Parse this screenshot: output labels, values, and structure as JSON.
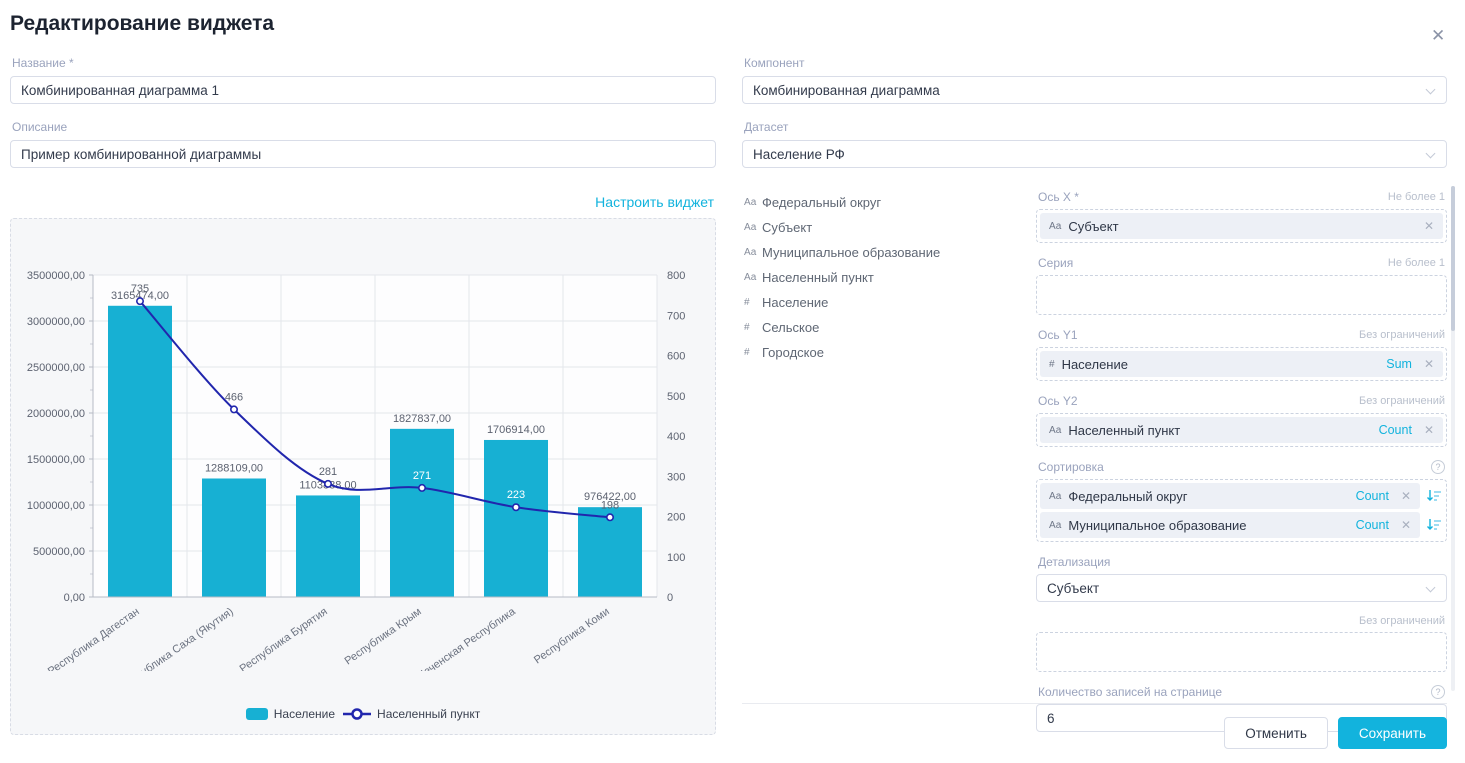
{
  "dialog": {
    "title": "Редактирование виджета",
    "close_icon": "✕"
  },
  "left": {
    "name_label": "Название *",
    "name_value": "Комбинированная диаграмма 1",
    "description_label": "Описание",
    "description_value": "Пример комбинированной диаграммы",
    "configure_link": "Настроить виджет"
  },
  "right": {
    "component_label": "Компонент",
    "component_value": "Комбинированная диаграмма",
    "dataset_label": "Датасет",
    "dataset_value": "Население РФ",
    "fields": [
      {
        "prefix": "Аа",
        "label": "Федеральный округ"
      },
      {
        "prefix": "Аа",
        "label": "Субъект"
      },
      {
        "prefix": "Аа",
        "label": "Муниципальное образование"
      },
      {
        "prefix": "Аа",
        "label": "Населенный пункт"
      },
      {
        "prefix": "#",
        "label": "Население"
      },
      {
        "prefix": "#",
        "label": "Сельское"
      },
      {
        "prefix": "#",
        "label": "Городское"
      }
    ],
    "axis_x": {
      "label": "Ось X *",
      "limit": "Не более 1",
      "chips": [
        {
          "prefix": "Аа",
          "label": "Субъект",
          "agg": "",
          "sortable": false
        }
      ]
    },
    "series": {
      "label": "Серия",
      "limit": "Не более 1",
      "chips": []
    },
    "axis_y1": {
      "label": "Ось Y1",
      "limit": "Без ограничений",
      "chips": [
        {
          "prefix": "#",
          "label": "Население",
          "agg": "Sum",
          "sortable": false
        }
      ]
    },
    "axis_y2": {
      "label": "Ось Y2",
      "limit": "Без ограничений",
      "chips": [
        {
          "prefix": "Аа",
          "label": "Населенный пункт",
          "agg": "Count",
          "sortable": false
        }
      ]
    },
    "sorting": {
      "label": "Сортировка",
      "chips": [
        {
          "prefix": "Аа",
          "label": "Федеральный округ",
          "agg": "Count",
          "sortable": true
        },
        {
          "prefix": "Аа",
          "label": "Муниципальное образование",
          "agg": "Count",
          "sortable": true
        }
      ]
    },
    "detail": {
      "label": "Детализация",
      "value": "Субъект"
    },
    "limit_box": {
      "limit": "Без ограничений"
    },
    "page_size": {
      "label": "Количество записей на странице",
      "value": "6"
    }
  },
  "footer": {
    "cancel_label": "Отменить",
    "save_label": "Сохранить"
  },
  "chart_data": {
    "type": "combo",
    "categories": [
      "Республика Дагестан",
      "Республика Саха (Якутия)",
      "Республика Бурятия",
      "Республика Крым",
      "Чеченская Республика",
      "Республика Коми"
    ],
    "bar_series": {
      "name": "Население",
      "type": "bar",
      "axis": "left",
      "color": "#17b0d3",
      "values": [
        3165474,
        1288109,
        1103838,
        1827837,
        1706914,
        976422
      ],
      "value_labels": [
        "3165474,00",
        "1288109,00",
        "1103838,00",
        "1827837,00",
        "1706914,00",
        "976422,00"
      ]
    },
    "line_series": {
      "name": "Населенный пункт",
      "type": "line",
      "axis": "right",
      "color": "#2126ad",
      "values": [
        735,
        466,
        281,
        271,
        223,
        198
      ]
    },
    "y_left": {
      "min": 0,
      "max": 3500000,
      "tick_labels": [
        "3500000,00",
        "3000000,00",
        "2500000,00",
        "2000000,00",
        "1500000,00",
        "1000000,00",
        "500000,00",
        "0,00"
      ]
    },
    "y_right": {
      "min": 0,
      "max": 800,
      "tick_labels": [
        "800",
        "700",
        "600",
        "500",
        "400",
        "300",
        "200",
        "100",
        "0"
      ]
    },
    "grid": true,
    "legend_position": "bottom"
  }
}
